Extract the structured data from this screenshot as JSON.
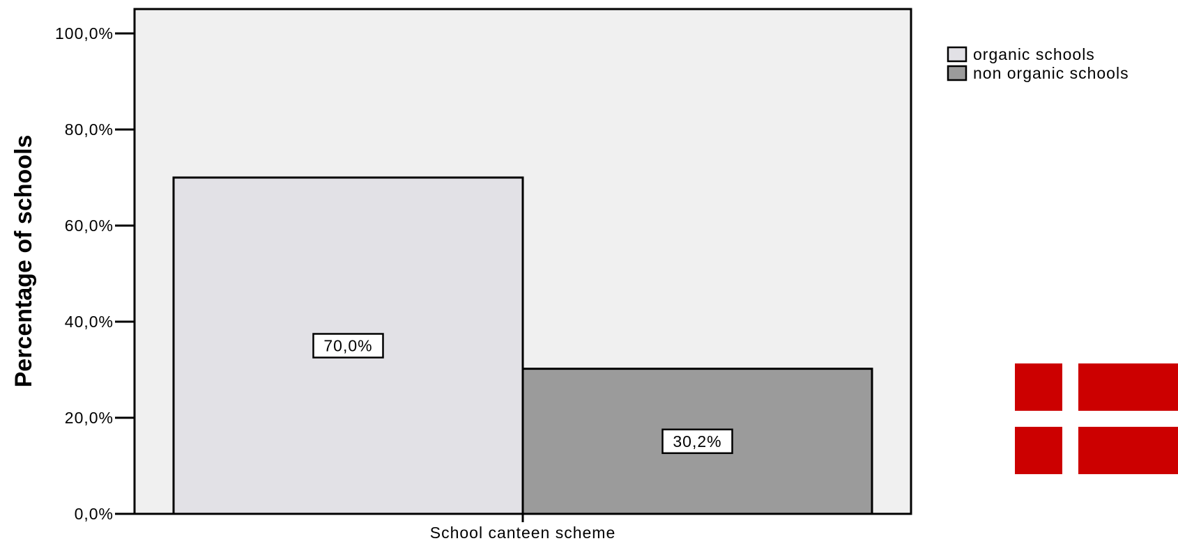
{
  "chart_data": {
    "type": "bar",
    "categories": [
      "School canteen scheme"
    ],
    "series": [
      {
        "name": "organic schools",
        "values": [
          70.0
        ],
        "label": "70,0%",
        "color": "#e2e1e6"
      },
      {
        "name": "non organic schools",
        "values": [
          30.2
        ],
        "label": "30,2%",
        "color": "#9b9b9b"
      }
    ],
    "xlabel": "School canteen scheme",
    "ylabel": "Percentage of schools",
    "ylim": [
      0,
      100
    ],
    "yticks": [
      {
        "value": 0,
        "label": "0,0%"
      },
      {
        "value": 20,
        "label": "20,0%"
      },
      {
        "value": 40,
        "label": "40,0%"
      },
      {
        "value": 60,
        "label": "60,0%"
      },
      {
        "value": 80,
        "label": "80,0%"
      },
      {
        "value": 100,
        "label": "100,0%"
      }
    ],
    "grid": false,
    "legend": "top-right",
    "plot_background": "#f0f0f0"
  },
  "decoration": {
    "flag": "Denmark flag",
    "flag_colors": {
      "red": "#cc0000",
      "cross": "#ffffff"
    }
  }
}
